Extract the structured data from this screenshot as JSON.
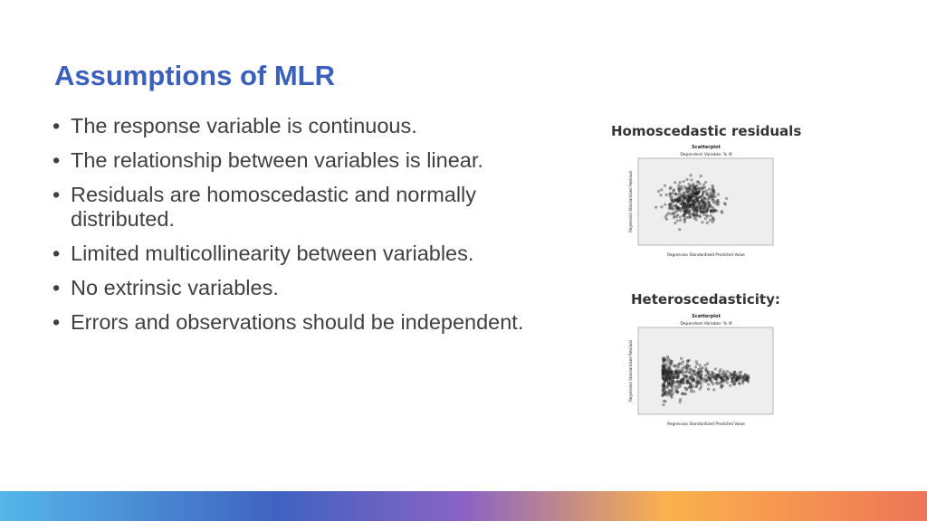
{
  "slide": {
    "title": "Assumptions of MLR",
    "bullets": [
      {
        "marker": "•",
        "text": "The response variable is continuous."
      },
      {
        "marker": "•",
        "text": "The relationship between variables is linear."
      },
      {
        "marker": "•",
        "text": "Residuals are homoscedastic and normally distributed."
      },
      {
        "marker": "•",
        "text": "Limited multicollinearity between variables."
      },
      {
        "marker": "•",
        "text": "No extrinsic variables."
      },
      {
        "marker": "•",
        "text": "Errors and observations should be independent."
      }
    ]
  },
  "figures": [
    {
      "caption": "Homoscedastic residuals",
      "plot_title": "Scatterplot",
      "plot_subtitle": "Dependent Variable: % ifi",
      "xlabel": "Regression Standardized Predicted Value",
      "ylabel": "Regression Standardized Residual"
    },
    {
      "caption": "Heteroscedasticity:",
      "plot_title": "Scatterplot",
      "plot_subtitle": "Dependent Variable: % ifi",
      "xlabel": "Regression Standardized Predicted Value",
      "ylabel": "Regression Standardized Residual"
    }
  ],
  "colors": {
    "title": "#3a5fbf",
    "text": "#404040",
    "plot_bg": "#eeeeee",
    "gradient": [
      "#55b6e9",
      "#3f62c0",
      "#8a63c4",
      "#fbb14d",
      "#ee7556"
    ]
  }
}
